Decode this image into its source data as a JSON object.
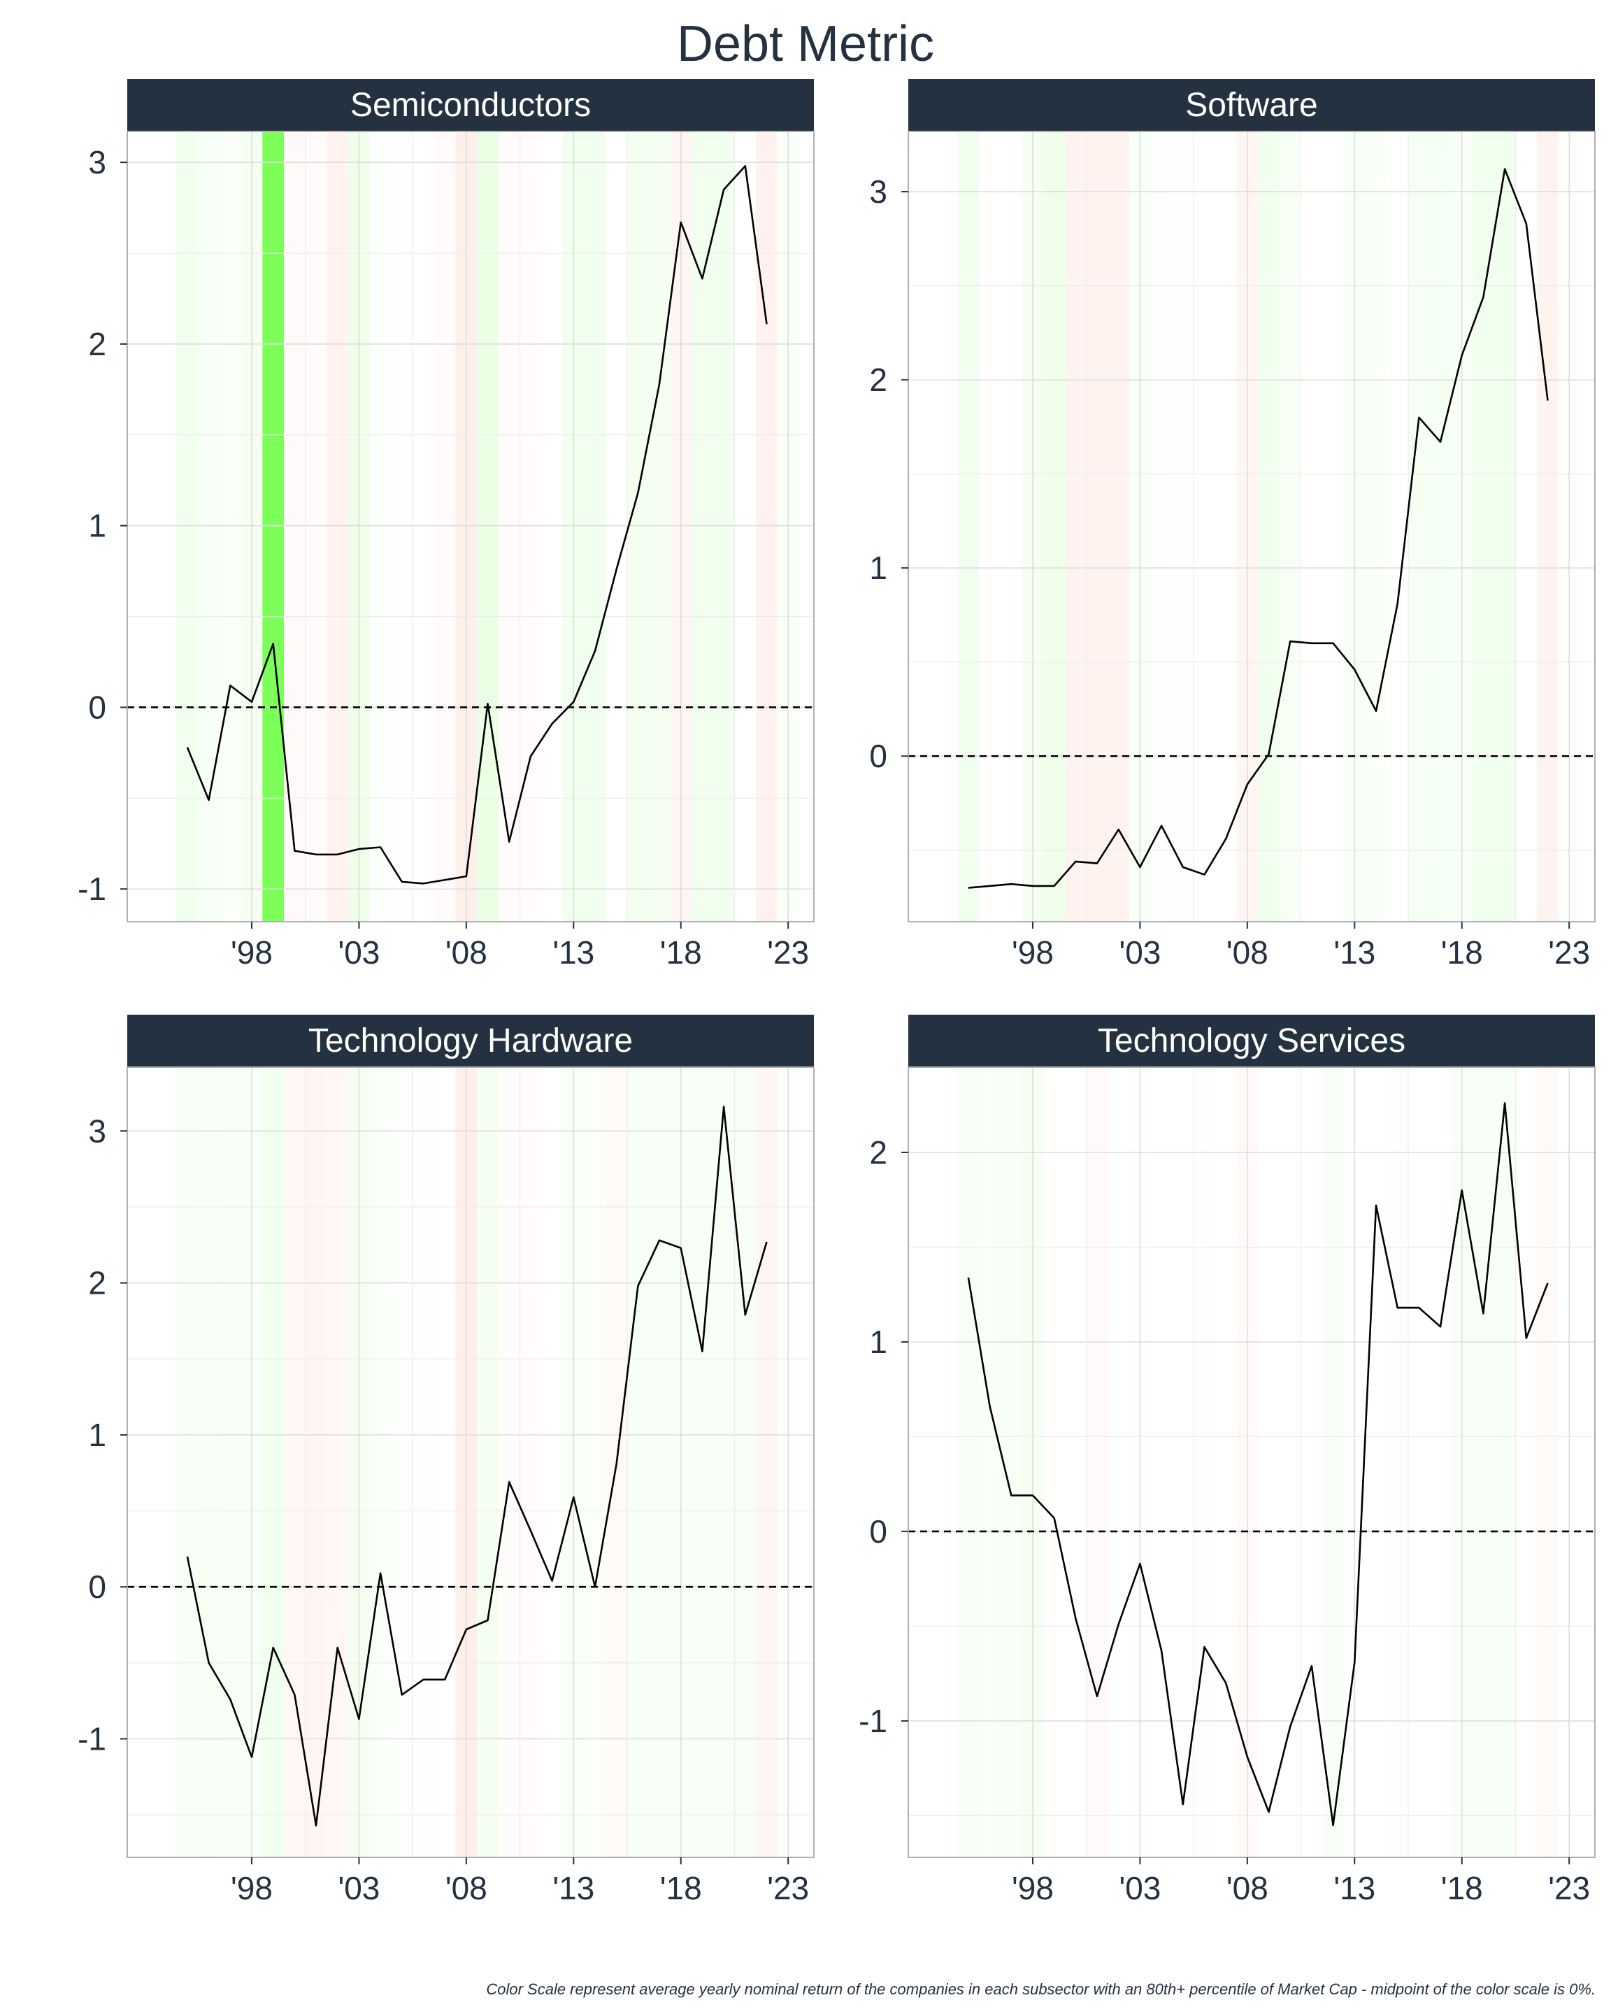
{
  "title": "Debt Metric",
  "caption": "Color Scale represent average yearly nominal return of the companies in each subsector with an 80th+ percentile of Market Cap - midpoint of the color scale is 0%.",
  "colors": {
    "positive": "#7dff5a",
    "negative": "#ffb4a0",
    "line": "#000000",
    "strip": "#243141",
    "text": "#243141"
  },
  "chart_data": [
    {
      "type": "line",
      "title": "Semiconductors",
      "xlabel": "",
      "ylabel": "",
      "x_ticks": [
        1998,
        2003,
        2008,
        2013,
        2018,
        2023
      ],
      "x_tick_labels": [
        "'98",
        "'03",
        "'08",
        "'13",
        "'18",
        "'23"
      ],
      "xlim": [
        1992.2,
        2024.2
      ],
      "y_ticks": [
        -1,
        0,
        1,
        2,
        3
      ],
      "y_tick_labels": [
        "-1",
        "0",
        "1",
        "2",
        "3"
      ],
      "ylim": [
        -1.18,
        3.17
      ],
      "zero_line": 0,
      "x": [
        1995,
        1996,
        1997,
        1998,
        1999,
        2000,
        2001,
        2002,
        2003,
        2004,
        2005,
        2006,
        2007,
        2008,
        2009,
        2010,
        2011,
        2012,
        2013,
        2014,
        2015,
        2016,
        2017,
        2018,
        2019,
        2020,
        2021,
        2022
      ],
      "values": [
        -0.22,
        -0.51,
        0.12,
        0.03,
        0.35,
        -0.79,
        -0.81,
        -0.81,
        -0.78,
        -0.77,
        -0.96,
        -0.97,
        -0.95,
        -0.93,
        0.02,
        -0.74,
        -0.27,
        -0.09,
        0.03,
        0.31,
        0.76,
        1.18,
        1.78,
        2.67,
        2.36,
        2.85,
        2.98,
        2.11
      ],
      "band_returns": [
        0.1,
        0.05,
        0.04,
        0.08,
        0.95,
        -0.06,
        -0.05,
        -0.15,
        0.12,
        0.02,
        0.01,
        0.0,
        -0.05,
        -0.2,
        0.15,
        -0.05,
        -0.04,
        0.0,
        0.1,
        0.1,
        0.0,
        0.09,
        0.08,
        -0.12,
        0.1,
        0.1,
        0.0,
        -0.18,
        0.03
      ]
    },
    {
      "type": "line",
      "title": "Software",
      "xlabel": "",
      "ylabel": "",
      "x_ticks": [
        1998,
        2003,
        2008,
        2013,
        2018,
        2023
      ],
      "x_tick_labels": [
        "'98",
        "'03",
        "'08",
        "'13",
        "'18",
        "'23"
      ],
      "xlim": [
        1992.2,
        2024.2
      ],
      "y_ticks": [
        0,
        1,
        2,
        3
      ],
      "y_tick_labels": [
        "0",
        "1",
        "2",
        "3"
      ],
      "ylim": [
        -0.88,
        3.32
      ],
      "zero_line": 0,
      "x": [
        1995,
        1996,
        1997,
        1998,
        1999,
        2000,
        2001,
        2002,
        2003,
        2004,
        2005,
        2006,
        2007,
        2008,
        2009,
        2010,
        2011,
        2012,
        2013,
        2014,
        2015,
        2016,
        2017,
        2018,
        2019,
        2020,
        2021,
        2022
      ],
      "values": [
        -0.7,
        -0.69,
        -0.68,
        -0.69,
        -0.69,
        -0.56,
        -0.57,
        -0.39,
        -0.59,
        -0.37,
        -0.59,
        -0.63,
        -0.44,
        -0.15,
        0.01,
        0.61,
        0.6,
        0.6,
        0.46,
        0.24,
        0.81,
        1.8,
        1.67,
        2.13,
        2.44,
        3.12,
        2.83,
        1.89
      ],
      "band_returns": [
        0.1,
        0.0,
        0.0,
        0.08,
        0.12,
        -0.15,
        -0.15,
        -0.15,
        0.05,
        0.02,
        0.01,
        0.0,
        0.0,
        -0.12,
        0.1,
        0.06,
        0.0,
        0.0,
        0.05,
        0.04,
        0.0,
        0.07,
        0.07,
        0.04,
        0.1,
        0.1,
        0.0,
        -0.15,
        0.02
      ]
    },
    {
      "type": "line",
      "title": "Technology Hardware",
      "xlabel": "",
      "ylabel": "",
      "x_ticks": [
        1998,
        2003,
        2008,
        2013,
        2018,
        2023
      ],
      "x_tick_labels": [
        "'98",
        "'03",
        "'08",
        "'13",
        "'18",
        "'23"
      ],
      "xlim": [
        1992.2,
        2024.2
      ],
      "y_ticks": [
        -1,
        0,
        1,
        2,
        3
      ],
      "y_tick_labels": [
        "-1",
        "0",
        "1",
        "2",
        "3"
      ],
      "ylim": [
        -1.78,
        3.42
      ],
      "zero_line": 0,
      "x": [
        1995,
        1996,
        1997,
        1998,
        1999,
        2000,
        2001,
        2002,
        2003,
        2004,
        2005,
        2006,
        2007,
        2008,
        2009,
        2010,
        2011,
        2012,
        2013,
        2014,
        2015,
        2016,
        2017,
        2018,
        2019,
        2020,
        2021,
        2022
      ],
      "values": [
        0.2,
        -0.5,
        -0.74,
        -1.12,
        -0.4,
        -0.71,
        -1.57,
        -0.4,
        -0.87,
        0.09,
        -0.71,
        -0.61,
        -0.61,
        -0.28,
        -0.22,
        0.69,
        0.37,
        0.04,
        0.59,
        0.0,
        0.81,
        1.98,
        2.28,
        2.23,
        1.55,
        3.16,
        1.79,
        2.27
      ],
      "band_returns": [
        0.05,
        0.06,
        0.05,
        0.05,
        0.1,
        -0.1,
        -0.12,
        -0.1,
        0.08,
        0.03,
        0.02,
        0.01,
        0.0,
        -0.2,
        0.08,
        -0.04,
        -0.04,
        0.0,
        0.04,
        0.03,
        -0.08,
        0.05,
        0.05,
        0.05,
        0.05,
        0.05,
        0.05,
        -0.12,
        0.02
      ]
    },
    {
      "type": "line",
      "title": "Technology Services",
      "xlabel": "",
      "ylabel": "",
      "x_ticks": [
        1998,
        2003,
        2008,
        2013,
        2018,
        2023
      ],
      "x_tick_labels": [
        "'98",
        "'03",
        "'08",
        "'13",
        "'18",
        "'23"
      ],
      "xlim": [
        1992.2,
        2024.2
      ],
      "y_ticks": [
        -1,
        0,
        1,
        2
      ],
      "y_tick_labels": [
        "-1",
        "0",
        "1",
        "2"
      ],
      "ylim": [
        -1.72,
        2.45
      ],
      "zero_line": 0,
      "x": [
        1995,
        1996,
        1997,
        1998,
        1999,
        2000,
        2001,
        2002,
        2003,
        2004,
        2005,
        2006,
        2007,
        2008,
        2009,
        2010,
        2011,
        2012,
        2013,
        2014,
        2015,
        2016,
        2017,
        2018,
        2019,
        2020,
        2021,
        2022
      ],
      "values": [
        1.34,
        0.66,
        0.19,
        0.19,
        0.07,
        -0.46,
        -0.87,
        -0.49,
        -0.17,
        -0.63,
        -1.44,
        -0.61,
        -0.8,
        -1.19,
        -1.48,
        -1.03,
        -0.71,
        -1.55,
        -0.69,
        1.72,
        1.18,
        1.18,
        1.08,
        1.8,
        1.15,
        2.26,
        1.02,
        1.31
      ],
      "band_returns": [
        0.05,
        0.04,
        0.05,
        0.08,
        0.0,
        0.0,
        -0.06,
        0.0,
        0.01,
        0.0,
        0.0,
        0.02,
        0.0,
        -0.08,
        0.0,
        0.0,
        0.0,
        0.05,
        0.0,
        0.0,
        0.02,
        0.0,
        0.0,
        0.05,
        0.05,
        0.05,
        0.0,
        -0.08,
        0.0
      ]
    }
  ]
}
